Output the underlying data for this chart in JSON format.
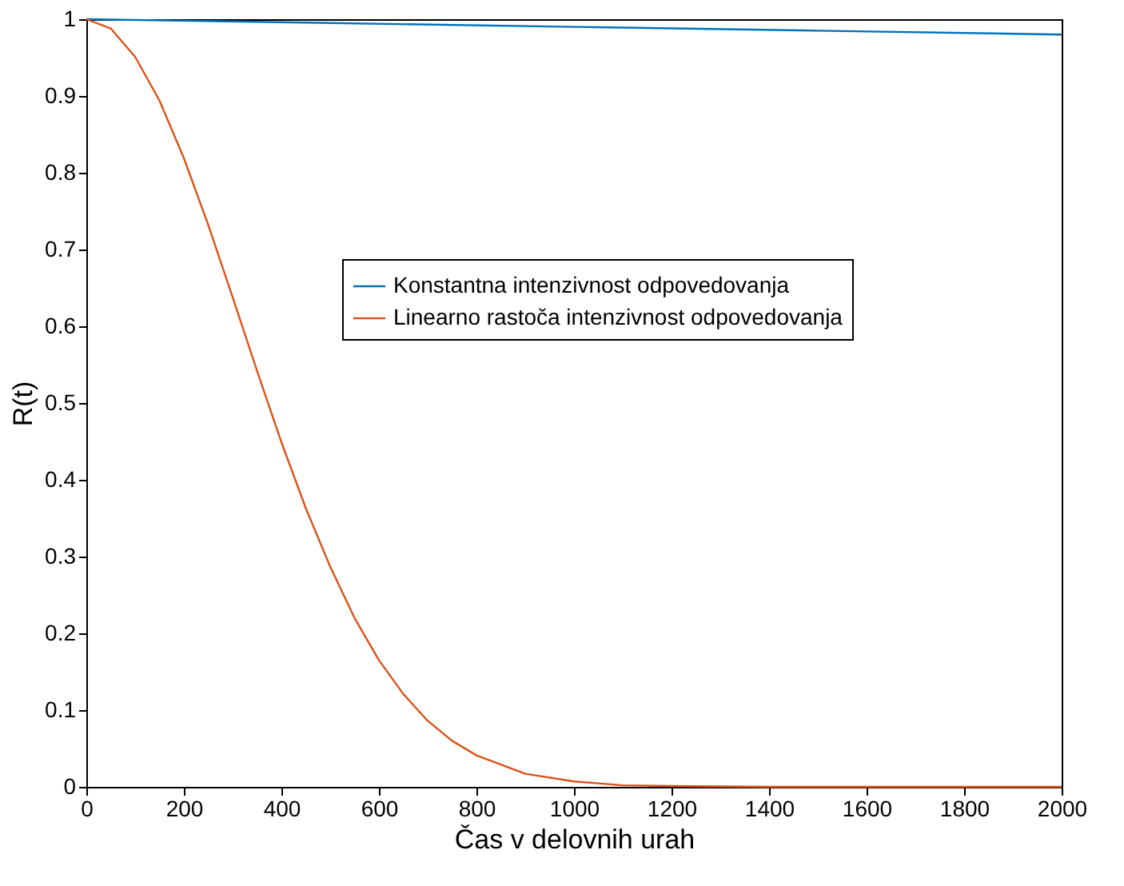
{
  "chart_data": {
    "type": "line",
    "xlabel": "Čas v delovnih urah",
    "ylabel": "R(t)",
    "xlim": [
      0,
      2000
    ],
    "ylim": [
      0,
      1
    ],
    "xticks": [
      0,
      200,
      400,
      600,
      800,
      1000,
      1200,
      1400,
      1600,
      1800,
      2000
    ],
    "yticks": [
      0,
      0.1,
      0.2,
      0.3,
      0.4,
      0.5,
      0.6,
      0.7,
      0.8,
      0.9,
      1
    ],
    "grid": false,
    "legend": "right",
    "marker": "none",
    "line_style": "solid",
    "series": [
      {
        "name": "Konstantna intenzivnost odpovedovanja",
        "color": "#0072bd",
        "x": [
          0,
          500,
          1000,
          1500,
          2000
        ],
        "values": [
          1,
          0.995,
          0.99,
          0.985,
          0.98
        ]
      },
      {
        "name": "Linearno rastoča intenzivnost odpovedovanja",
        "color": "#d95319",
        "x": [
          0,
          50,
          100,
          150,
          200,
          250,
          300,
          350,
          400,
          450,
          500,
          550,
          600,
          650,
          700,
          750,
          800,
          900,
          1000,
          1100,
          1200,
          1400,
          2000
        ],
        "values": [
          1,
          0.988,
          0.951,
          0.894,
          0.819,
          0.732,
          0.638,
          0.542,
          0.449,
          0.363,
          0.287,
          0.22,
          0.165,
          0.121,
          0.086,
          0.06,
          0.041,
          0.017,
          0.007,
          0.002,
          0.001,
          0,
          0
        ]
      }
    ]
  }
}
